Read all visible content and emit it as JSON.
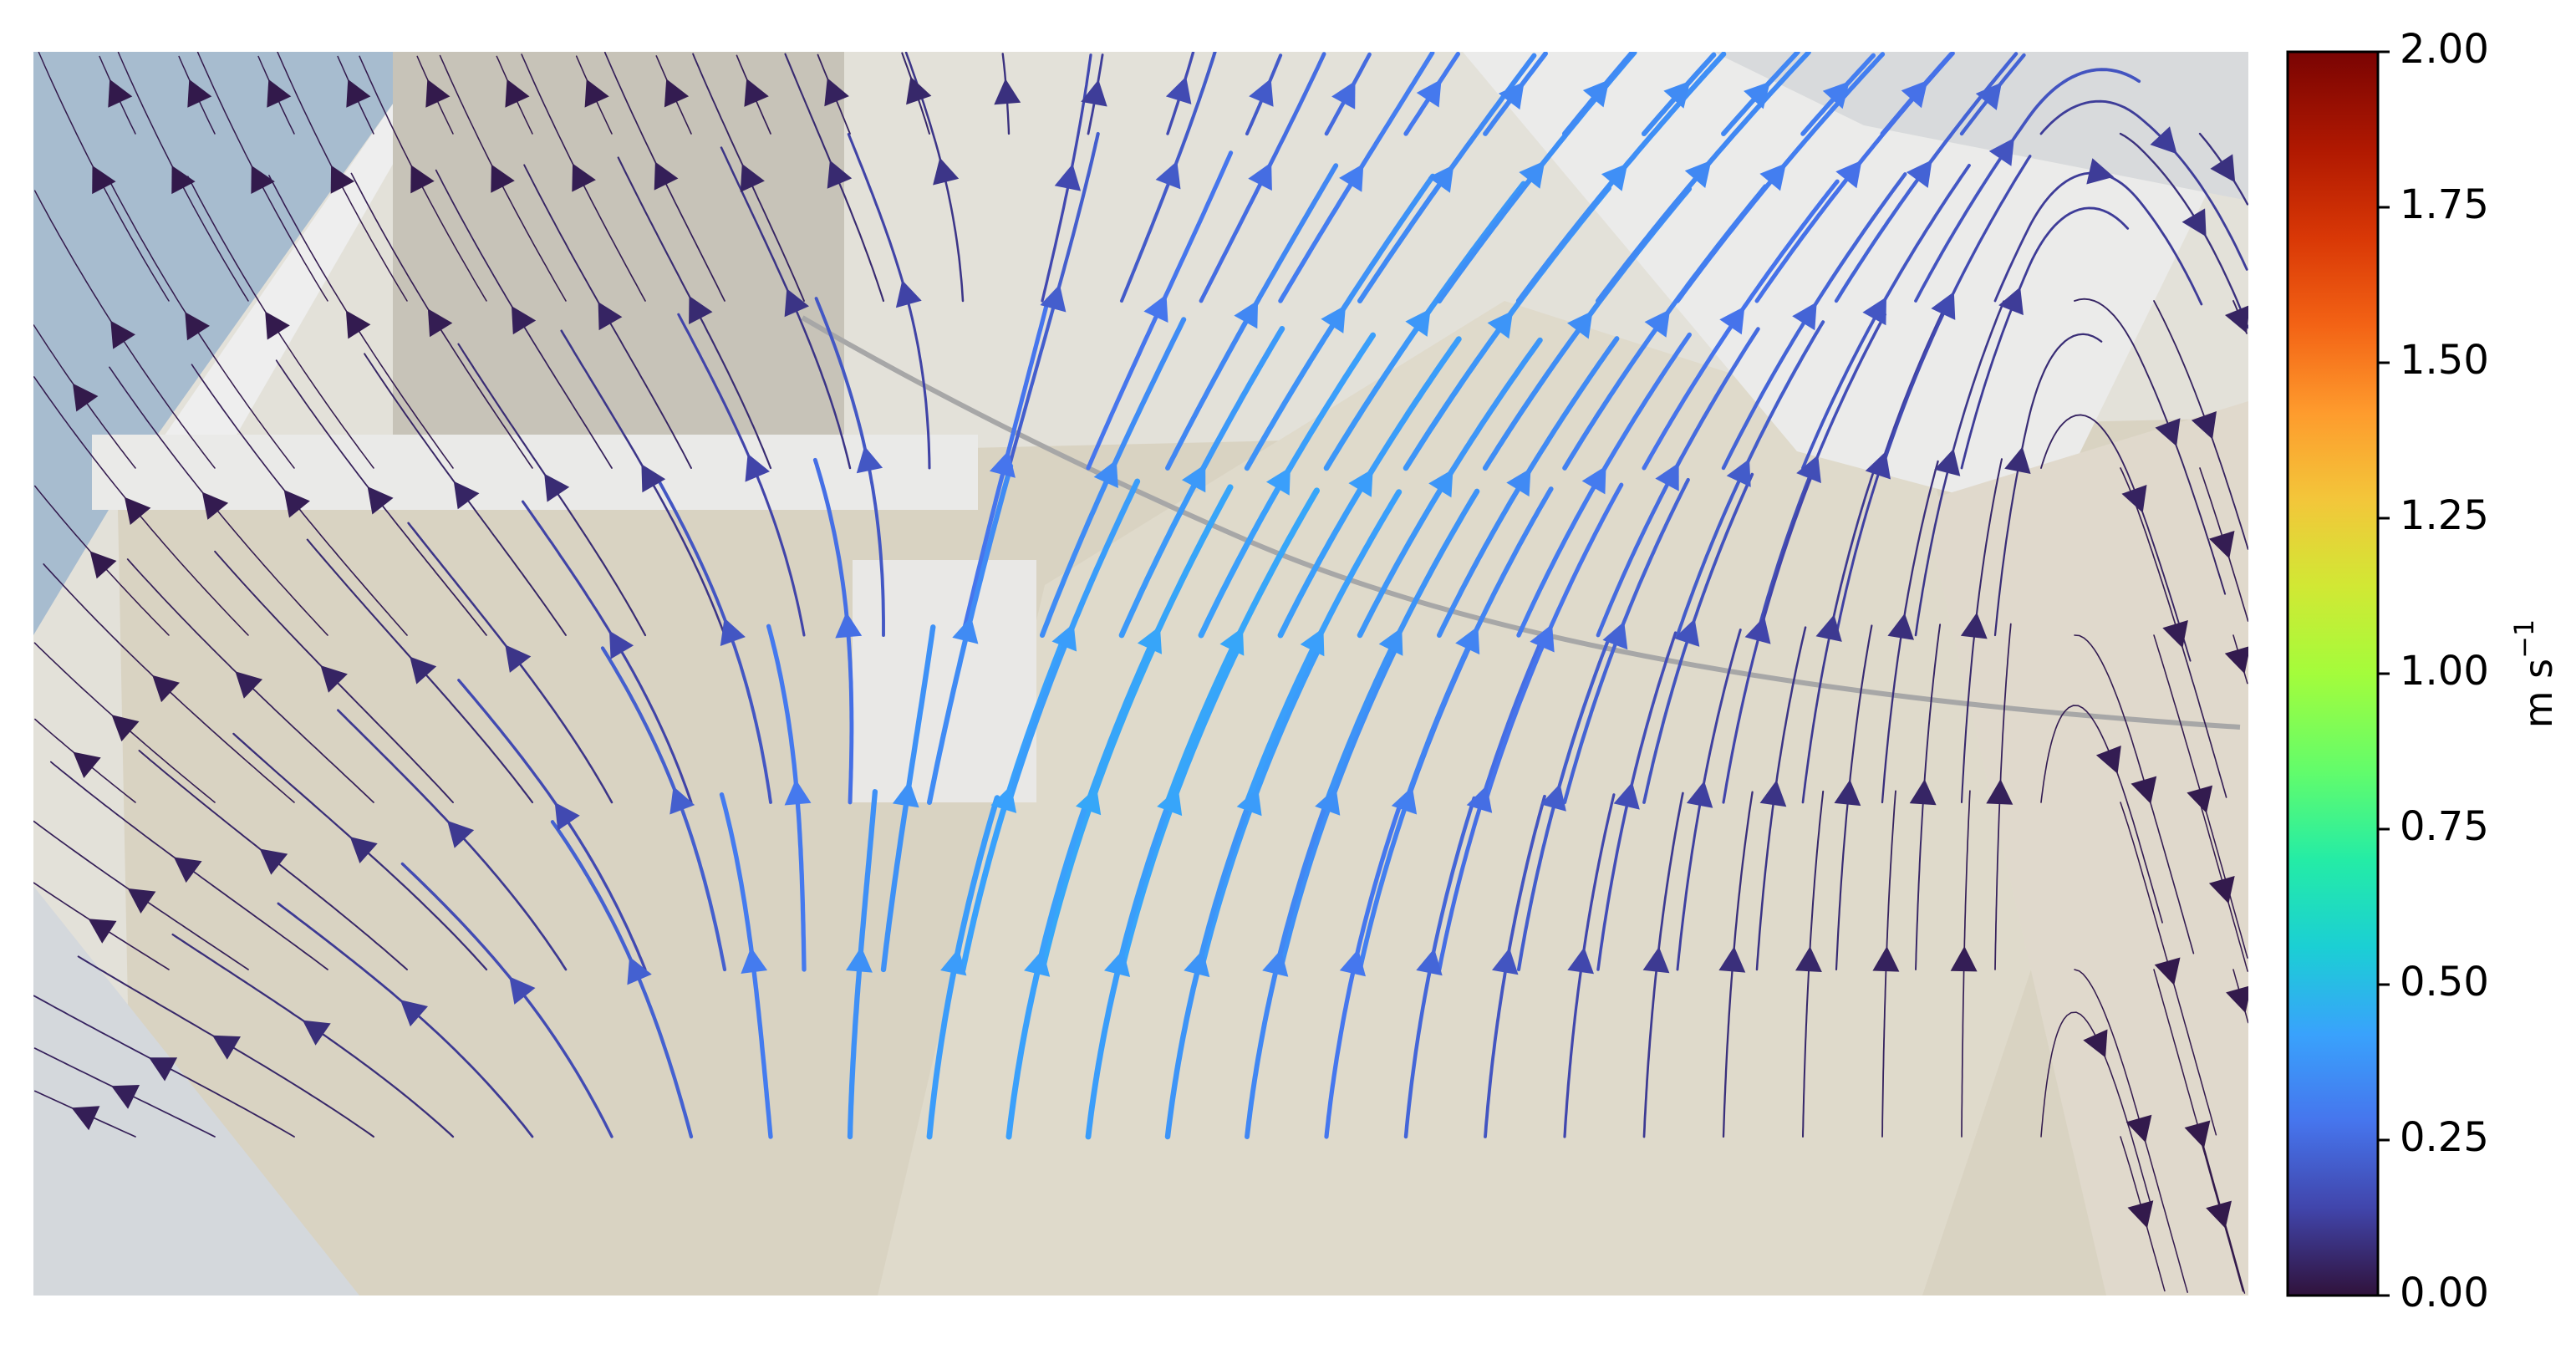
{
  "chart_data": {
    "type": "streamplot",
    "title": "",
    "xlabel": "",
    "ylabel": "",
    "background": "laboratory flume photograph (faded) with sediment-laden water flowing from bottom towards upper right",
    "colorbar": {
      "label": "m s",
      "label_superscript": "−1",
      "vmin": 0.0,
      "vmax": 2.0,
      "colormap": "turbo",
      "ticks": [
        "0.00",
        "0.25",
        "0.50",
        "0.75",
        "1.00",
        "1.25",
        "1.50",
        "1.75",
        "2.00"
      ],
      "placement": "right"
    },
    "flow_summary": {
      "max_speed": 0.45,
      "main_jet": "upward through centre-right of channel, bending to upper right",
      "left_region": "slow recirculation flowing leftwards and upwards",
      "right_edge": "slow flow directed downwards and outwards"
    }
  }
}
